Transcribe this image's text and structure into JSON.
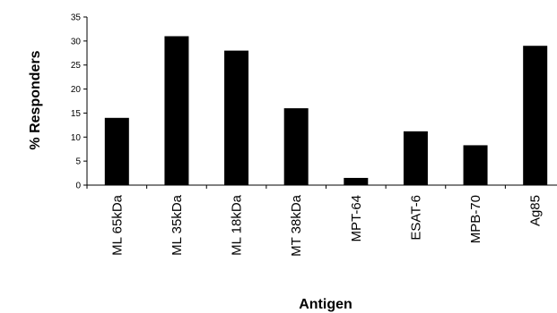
{
  "chart_data": {
    "type": "bar",
    "categories": [
      "ML 65kDa",
      "ML 35kDa",
      "ML 18kDa",
      "MT 38kDa",
      "MPT-64",
      "ESAT-6",
      "MPB-70",
      "Ag85"
    ],
    "values": [
      14,
      31,
      28,
      16,
      1.5,
      11.2,
      8.3,
      29
    ],
    "xlabel": "Antigen",
    "ylabel": "% Responders",
    "ylim": [
      0,
      35
    ],
    "yticks": [
      0,
      5,
      10,
      15,
      20,
      25,
      30,
      35
    ],
    "grid": false,
    "legend": "none",
    "bar_color": "#000000"
  }
}
